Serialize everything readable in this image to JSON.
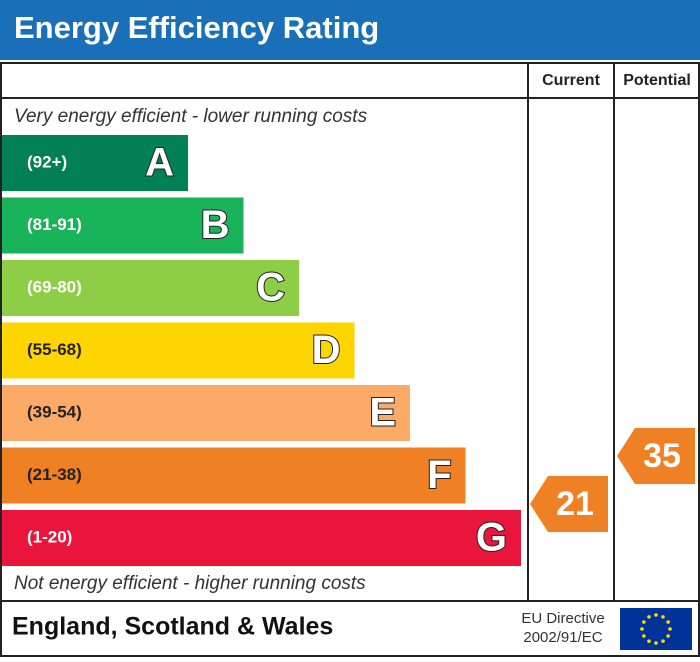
{
  "header": {
    "title": "Energy Efficiency Rating"
  },
  "columns": [
    "Current",
    "Potential"
  ],
  "top_note": "Very energy efficient - lower running costs",
  "bottom_note": "Not energy efficient - higher running costs",
  "bands": [
    {
      "range": "(92+)",
      "letter": "A",
      "color": "#008054",
      "text_color": "#ffffff"
    },
    {
      "range": "(81-91)",
      "letter": "B",
      "color": "#19b459",
      "text_color": "#ffffff"
    },
    {
      "range": "(69-80)",
      "letter": "C",
      "color": "#8dce46",
      "text_color": "#ffffff"
    },
    {
      "range": "(55-68)",
      "letter": "D",
      "color": "#ffd500",
      "text_color": "#222222"
    },
    {
      "range": "(39-54)",
      "letter": "E",
      "color": "#fcaa65",
      "text_color": "#222222"
    },
    {
      "range": "(21-38)",
      "letter": "F",
      "color": "#ef8023",
      "text_color": "#222222"
    },
    {
      "range": "(1-20)",
      "letter": "G",
      "color": "#e9153b",
      "text_color": "#ffffff"
    }
  ],
  "current": {
    "value": "21",
    "band": 5,
    "color": "#ef8023"
  },
  "potential": {
    "value": "35",
    "band": 5,
    "color": "#ef8023"
  },
  "footer": {
    "region": "England, Scotland & Wales",
    "directive": [
      "EU Directive",
      "2002/91/EC"
    ]
  }
}
